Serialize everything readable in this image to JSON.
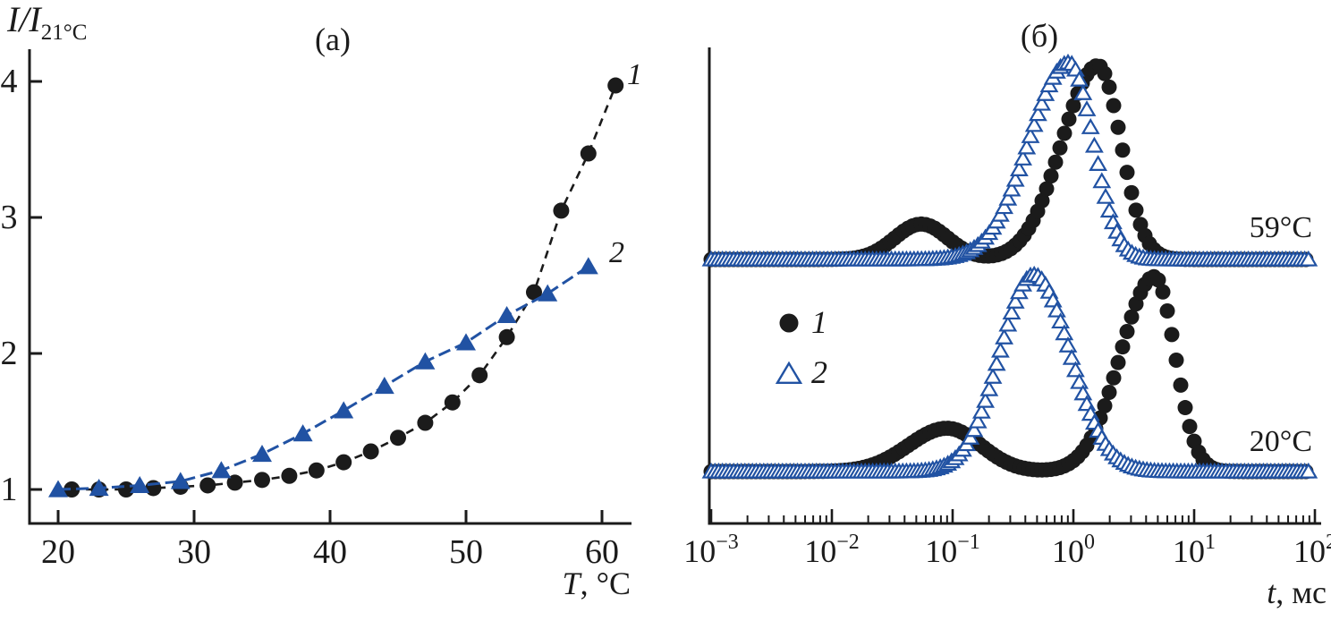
{
  "colors": {
    "ink": "#1b1b1b",
    "blue": "#2152a3",
    "background": "#ffffff"
  },
  "panel_a": {
    "title": "(а)",
    "ylabel_main": "I/I",
    "ylabel_sub": "21°C",
    "xlabel_var": "T",
    "xlabel_rest": ", °C",
    "series1_label": "1",
    "series2_label": "2"
  },
  "panel_b": {
    "title": "(б)",
    "xlabel_var": "t",
    "xlabel_rest": ", мс",
    "temp_label_top": "59°C",
    "temp_label_bottom": "20°C",
    "legend1_label": "1",
    "legend2_label": "2"
  },
  "chart_data": [
    {
      "type": "scatter",
      "panel": "а",
      "title": "(а)",
      "xlabel": "T, °C",
      "ylabel": "I/I21°C",
      "xlim": [
        18.5,
        62.5
      ],
      "ylim": [
        0.75,
        4.3
      ],
      "x_ticks": [
        20,
        30,
        40,
        50,
        60
      ],
      "y_ticks": [
        1,
        2,
        3,
        4
      ],
      "grid": false,
      "series": [
        {
          "name": "1",
          "marker": "filled-circle",
          "color": "#1b1b1b",
          "line": "dashed",
          "x": [
            21,
            23,
            25,
            27,
            29,
            31,
            33,
            35,
            37,
            39,
            41,
            43,
            45,
            47,
            49,
            51,
            53,
            55,
            57,
            59,
            61
          ],
          "y": [
            1.0,
            1.0,
            1.0,
            1.01,
            1.02,
            1.03,
            1.05,
            1.07,
            1.1,
            1.14,
            1.2,
            1.28,
            1.38,
            1.49,
            1.64,
            1.84,
            2.12,
            2.45,
            3.05,
            3.47,
            3.97
          ]
        },
        {
          "name": "2",
          "marker": "filled-triangle",
          "color": "#2152a3",
          "line": "dashed",
          "x": [
            20,
            23,
            26,
            29,
            32,
            35,
            38,
            41,
            44,
            47,
            50,
            53,
            56,
            59
          ],
          "y": [
            1.0,
            1.01,
            1.03,
            1.06,
            1.14,
            1.26,
            1.41,
            1.58,
            1.76,
            1.94,
            2.08,
            2.28,
            2.44,
            2.64
          ]
        }
      ]
    },
    {
      "type": "line",
      "panel": "б",
      "title": "(б)",
      "xlabel": "t, мс",
      "x_scale": "log10",
      "xlim_exp": [
        -3,
        2
      ],
      "x_tick_exponents": [
        -3,
        -2,
        -1,
        0,
        1,
        2
      ],
      "x_tick_base": "10",
      "legend": [
        {
          "name": "1",
          "marker": "filled-circle",
          "color": "#1b1b1b"
        },
        {
          "name": "2",
          "marker": "open-triangle",
          "color": "#2152a3"
        }
      ],
      "groups": [
        {
          "temp": "59°C",
          "curves": [
            {
              "series": "1",
              "marker": "filled-circle",
              "color": "#1b1b1b",
              "peaks": [
                {
                  "t_ms": 0.055,
                  "rel_height": 0.18,
                  "sigma_left_dec": 0.22,
                  "sigma_right_dec": 0.22
                },
                {
                  "t_ms": 1.6,
                  "rel_height": 0.985,
                  "sigma_left_dec": 0.3,
                  "sigma_right_dec": 0.19
                }
              ]
            },
            {
              "series": "2",
              "marker": "open-triangle",
              "color": "#2152a3",
              "peaks": [
                {
                  "t_ms": 0.92,
                  "rel_height": 1.0,
                  "sigma_left_dec": 0.33,
                  "sigma_right_dec": 0.2
                }
              ]
            }
          ]
        },
        {
          "temp": "20°C",
          "curves": [
            {
              "series": "1",
              "marker": "filled-circle",
              "color": "#1b1b1b",
              "peaks": [
                {
                  "t_ms": 0.09,
                  "rel_height": 0.22,
                  "sigma_left_dec": 0.32,
                  "sigma_right_dec": 0.28
                },
                {
                  "t_ms": 4.7,
                  "rel_height": 0.99,
                  "sigma_left_dec": 0.28,
                  "sigma_right_dec": 0.17
                }
              ]
            },
            {
              "series": "2",
              "marker": "open-triangle",
              "color": "#2152a3",
              "peaks": [
                {
                  "t_ms": 0.47,
                  "rel_height": 1.0,
                  "sigma_left_dec": 0.28,
                  "sigma_right_dec": 0.3
                }
              ]
            }
          ]
        }
      ]
    }
  ]
}
